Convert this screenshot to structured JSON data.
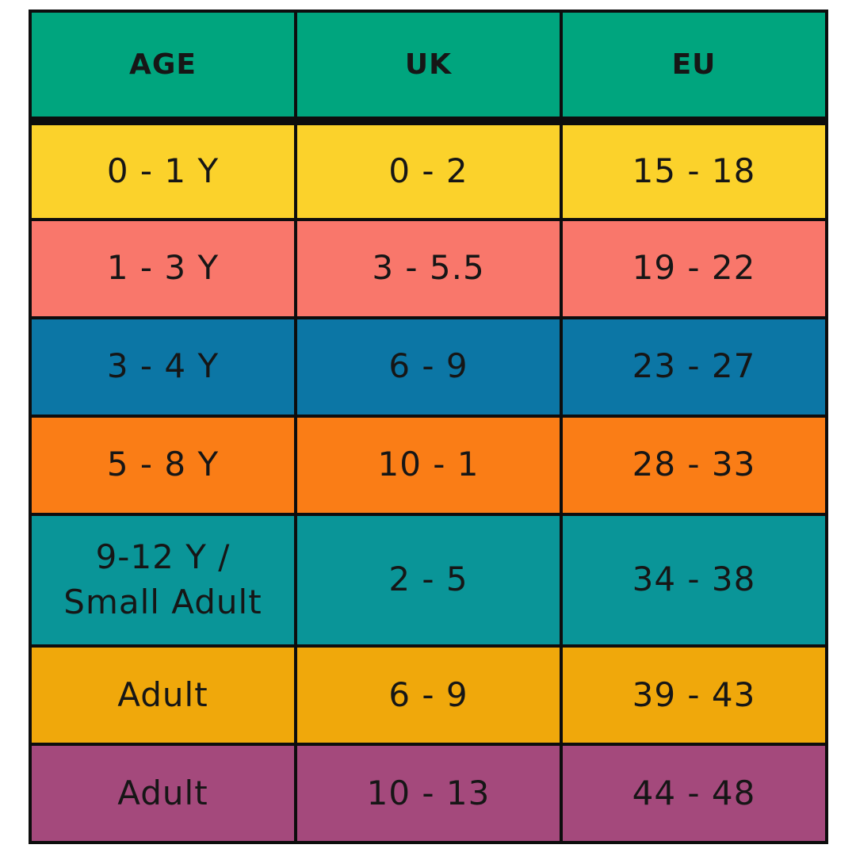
{
  "colors": {
    "header_bg": "#00A57E",
    "border": "#0D0D0D",
    "text": "#161616",
    "background": "#FFFFFF"
  },
  "chart_data": {
    "type": "table",
    "columns": [
      "AGE",
      "UK",
      "EU"
    ],
    "rows": [
      {
        "age": "0 - 1 Y",
        "uk": "0 - 2",
        "eu": "15 - 18",
        "bg": "#FBD22B"
      },
      {
        "age": "1 - 3 Y",
        "uk": "3 - 5.5",
        "eu": "19 - 22",
        "bg": "#F9776B"
      },
      {
        "age": "3 - 4 Y",
        "uk": "6 - 9",
        "eu": "23 - 27",
        "bg": "#0C76A5"
      },
      {
        "age": "5 - 8 Y",
        "uk": "10 - 1",
        "eu": "28 - 33",
        "bg": "#FA7D16"
      },
      {
        "age": "9-12 Y /\nSmall Adult",
        "uk": "2 - 5",
        "eu": "34 - 38",
        "bg": "#0A9598"
      },
      {
        "age": "Adult",
        "uk": "6 - 9",
        "eu": "39 - 43",
        "bg": "#F0A80B"
      },
      {
        "age": "Adult",
        "uk": "10 - 13",
        "eu": "44 - 48",
        "bg": "#A4497C"
      }
    ]
  }
}
